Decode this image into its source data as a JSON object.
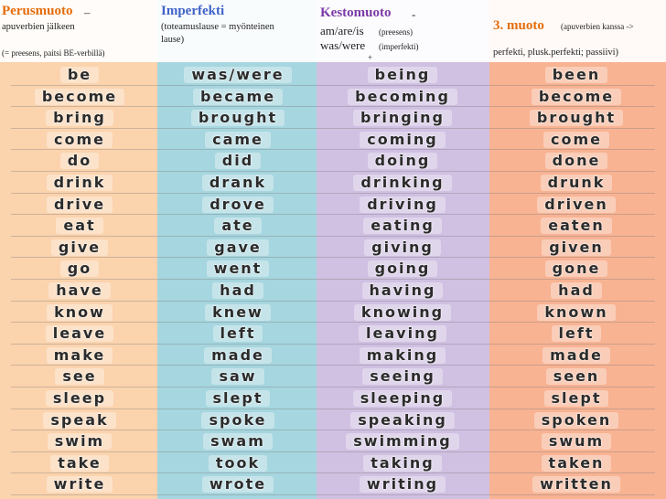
{
  "header": {
    "col1": {
      "title": "Perusmuoto",
      "dash": " –",
      "line2": "apuverbien jälkeen",
      "line3": "(= preesens, paitsi BE-verbillä)"
    },
    "col2": {
      "title": "Imperfekti",
      "line2": "(toteamuslause = myönteinen",
      "line3": "lause)"
    },
    "col3": {
      "title": "Kestomuoto",
      "dash": " -",
      "line2": "am/are/is",
      "line2_note": "(preesens)",
      "line3": "was/were",
      "line3_note": "(imperfekti)",
      "plus": "+"
    },
    "col4": {
      "title": "3. muoto",
      "title_note": "(apuverbien kanssa ->",
      "line2": "perfekti, plusk.perfekti; passiivi)"
    }
  },
  "rows": [
    [
      "be",
      "was/were",
      "being",
      "been"
    ],
    [
      "become",
      "became",
      "becoming",
      "become"
    ],
    [
      "bring",
      "brought",
      "bringing",
      "brought"
    ],
    [
      "come",
      "came",
      "coming",
      "come"
    ],
    [
      "do",
      "did",
      "doing",
      "done"
    ],
    [
      "drink",
      "drank",
      "drinking",
      "drunk"
    ],
    [
      "drive",
      "drove",
      "driving",
      "driven"
    ],
    [
      "eat",
      "ate",
      "eating",
      "eaten"
    ],
    [
      "give",
      "gave",
      "giving",
      "given"
    ],
    [
      "go",
      "went",
      "going",
      "gone"
    ],
    [
      "have",
      "had",
      "having",
      "had"
    ],
    [
      "know",
      "knew",
      "knowing",
      "known"
    ],
    [
      "leave",
      "left",
      "leaving",
      "left"
    ],
    [
      "make",
      "made",
      "making",
      "made"
    ],
    [
      "see",
      "saw",
      "seeing",
      "seen"
    ],
    [
      "sleep",
      "slept",
      "sleeping",
      "slept"
    ],
    [
      "speak",
      "spoke",
      "speaking",
      "spoken"
    ],
    [
      "swim",
      "swam",
      "swimming",
      "swum"
    ],
    [
      "take",
      "took",
      "taking",
      "taken"
    ],
    [
      "write",
      "wrote",
      "writing",
      "written"
    ]
  ],
  "colors": {
    "col1_bg": "#fbd3ad",
    "col2_bg": "#a6d6df",
    "col3_bg": "#d0c0e2",
    "col4_bg": "#f8b393",
    "title1": "#e46c0a",
    "title2": "#3f63c7",
    "title3": "#7a3aa6",
    "title4": "#e46c0a"
  }
}
